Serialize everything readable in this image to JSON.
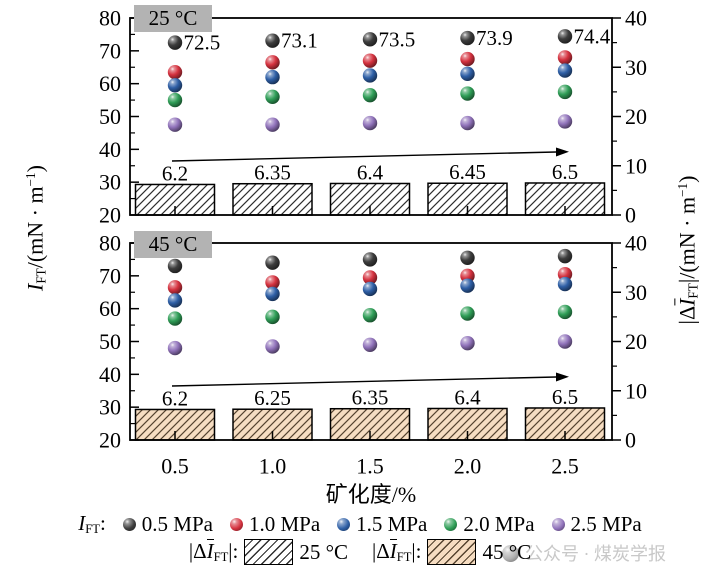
{
  "axes": {
    "x_title": "矿化度/%",
    "x_ticks": [
      "0.5",
      "1.0",
      "1.5",
      "2.0",
      "2.5"
    ],
    "left_ticks": [
      "80",
      "70",
      "60",
      "50",
      "40",
      "30",
      "20"
    ],
    "right_ticks": [
      "40",
      "30",
      "20",
      "10",
      "0"
    ],
    "left_title": {
      "i": "I",
      "sub": "FT",
      "mid": "/(mN · m",
      "sup": "−1",
      "end": ")"
    },
    "right_title": {
      "p1": "|Δ",
      "i": "I",
      "sub": "FT",
      "p2": "|/(mN · m",
      "sup": "−1",
      "end": ")"
    }
  },
  "chart_data": [
    {
      "type": "scatter+bar",
      "panel_label": "25 °C",
      "x": [
        0.5,
        1.0,
        1.5,
        2.0,
        2.5
      ],
      "ylim_left": [
        20,
        80
      ],
      "ylim_right": [
        0,
        40
      ],
      "series": [
        {
          "name": "0.5 MPa",
          "color": "#3d3d3d",
          "values": [
            72.5,
            73.1,
            73.5,
            73.9,
            74.4
          ],
          "point_labels": [
            "72.5",
            "73.1",
            "73.5",
            "73.9",
            "74.4"
          ]
        },
        {
          "name": "1.0 MPa",
          "color": "#d5323f",
          "values": [
            63.5,
            66.5,
            67.0,
            67.5,
            68.0
          ]
        },
        {
          "name": "1.5 MPa",
          "color": "#2e5fa6",
          "values": [
            59.5,
            62.0,
            62.5,
            63.0,
            64.0
          ]
        },
        {
          "name": "2.0 MPa",
          "color": "#2f9e57",
          "values": [
            55.0,
            56.0,
            56.5,
            57.0,
            57.5
          ]
        },
        {
          "name": "2.5 MPa",
          "color": "#9173bb",
          "values": [
            47.5,
            47.5,
            48.0,
            48.0,
            48.5
          ]
        }
      ],
      "bars": {
        "name": "|ΔIFT| 25 °C",
        "values": [
          6.2,
          6.35,
          6.4,
          6.45,
          6.5
        ],
        "labels": [
          "6.2",
          "6.35",
          "6.4",
          "6.45",
          "6.5"
        ],
        "fill": "#ffffff",
        "hatch": "#2e2e2e"
      },
      "trend_arrow": true
    },
    {
      "type": "scatter+bar",
      "panel_label": "45 °C",
      "x": [
        0.5,
        1.0,
        1.5,
        2.0,
        2.5
      ],
      "ylim_left": [
        20,
        80
      ],
      "ylim_right": [
        0,
        40
      ],
      "series": [
        {
          "name": "0.5 MPa",
          "color": "#3d3d3d",
          "values": [
            73.0,
            74.0,
            75.0,
            75.5,
            76.0
          ]
        },
        {
          "name": "1.0 MPa",
          "color": "#d5323f",
          "values": [
            66.5,
            68.0,
            69.5,
            70.0,
            70.5
          ]
        },
        {
          "name": "1.5 MPa",
          "color": "#2e5fa6",
          "values": [
            62.5,
            64.5,
            66.0,
            67.0,
            67.5
          ]
        },
        {
          "name": "2.0 MPa",
          "color": "#2f9e57",
          "values": [
            57.0,
            57.5,
            58.0,
            58.5,
            59.0
          ]
        },
        {
          "name": "2.5 MPa",
          "color": "#9173bb",
          "values": [
            48.0,
            48.5,
            49.0,
            49.5,
            50.0
          ]
        }
      ],
      "bars": {
        "name": "|ΔIFT| 45 °C",
        "values": [
          6.2,
          6.25,
          6.35,
          6.4,
          6.5
        ],
        "labels": [
          "6.2",
          "6.25",
          "6.35",
          "6.4",
          "6.5"
        ],
        "fill": "#f6ddc2",
        "hatch": "#55432f"
      },
      "trend_arrow": true
    }
  ],
  "legend": {
    "prefix": {
      "i": "I",
      "sub": "FT",
      "colon": ":"
    },
    "items": [
      {
        "label": "0.5 MPa",
        "color": "#3d3d3d"
      },
      {
        "label": "1.0 MPa",
        "color": "#d5323f"
      },
      {
        "label": "1.5 MPa",
        "color": "#2e5fa6"
      },
      {
        "label": "2.0 MPa",
        "color": "#2f9e57"
      },
      {
        "label": "2.5 MPa",
        "color": "#9173bb"
      }
    ],
    "bar_items": [
      {
        "p1": "|Δ",
        "i": "I",
        "sub": "FT",
        "p2": "|:",
        "label": "25 °C",
        "fill": "#ffffff",
        "hatch": "#2e2e2e"
      },
      {
        "p1": "|Δ",
        "i": "I",
        "sub": "FT",
        "p2": "|:",
        "label": "45 °C",
        "fill": "#f6ddc2",
        "hatch": "#55432f"
      }
    ]
  },
  "watermark": {
    "text": "公众号 · 煤炭学报",
    "ball_color": "#a4a4a4"
  }
}
